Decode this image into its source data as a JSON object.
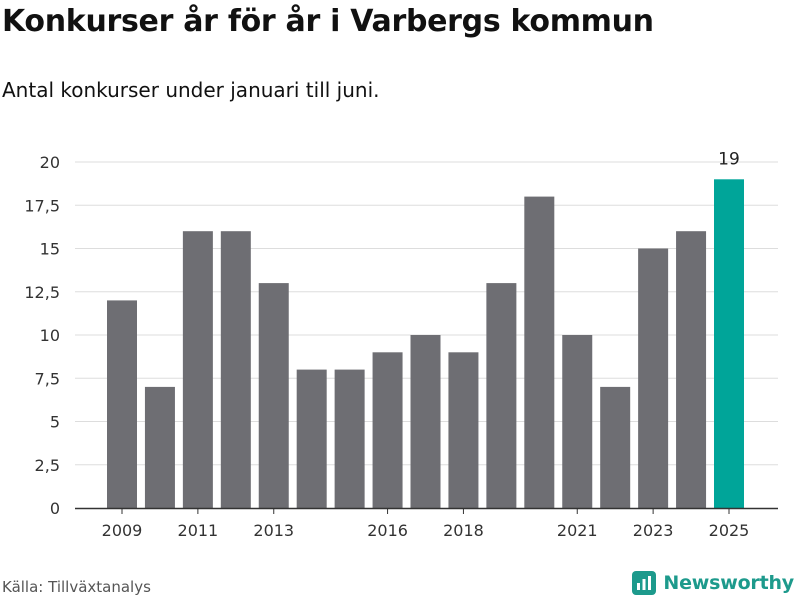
{
  "title": "Konkurser år för år i Varbergs kommun",
  "subtitle": "Antal konkurser under januari till juni.",
  "source": "Källa: Tillväxtanalys",
  "brand": "Newsworthy",
  "colors": {
    "bar": "#6e6e73",
    "highlight": "#00a599",
    "grid": "#dddddd",
    "axis": "#333333"
  },
  "chart_data": {
    "type": "bar",
    "x": [
      2009,
      2010,
      2011,
      2012,
      2013,
      2014,
      2015,
      2016,
      2017,
      2018,
      2019,
      2020,
      2021,
      2022,
      2023,
      2024,
      2025
    ],
    "values": [
      12,
      7,
      16,
      16,
      13,
      8,
      8,
      9,
      10,
      9,
      13,
      18,
      10,
      7,
      15,
      16,
      19
    ],
    "x_tick_labels": [
      "2009",
      "2011",
      "2013",
      "2016",
      "2018",
      "2021",
      "2023",
      "2025"
    ],
    "y_ticks": [
      "0",
      "2,5",
      "5",
      "7,5",
      "10",
      "12,5",
      "15",
      "17,5",
      "20"
    ],
    "ylim": [
      0,
      20
    ],
    "highlight": {
      "x": 2025,
      "label": "19"
    },
    "grid": true
  }
}
